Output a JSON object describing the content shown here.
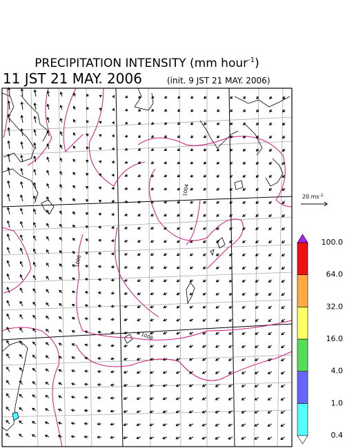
{
  "header": {
    "title": "PRECIPITATION INTENSITY (mm hour",
    "title_sup": "-1",
    "title_end": ")",
    "time": "11 JST 21 MAY. 2006",
    "init": "(init. 9 JST 21 MAY. 2006)"
  },
  "wind_scale": {
    "label": "20 ms",
    "sup": "-1"
  },
  "contour_labels": [
    "1004",
    "1006",
    "1008"
  ],
  "colorbar": {
    "labels": [
      "0.4",
      "1.0",
      "4.0",
      "16.0",
      "32.0",
      "64.0",
      "100.0"
    ],
    "colors": [
      "#55ffff",
      "#6666ff",
      "#55dd55",
      "#ffff66",
      "#ffaa44",
      "#ee1111"
    ],
    "over_color": "#aa22ee",
    "under_color": "#ffffff"
  }
}
